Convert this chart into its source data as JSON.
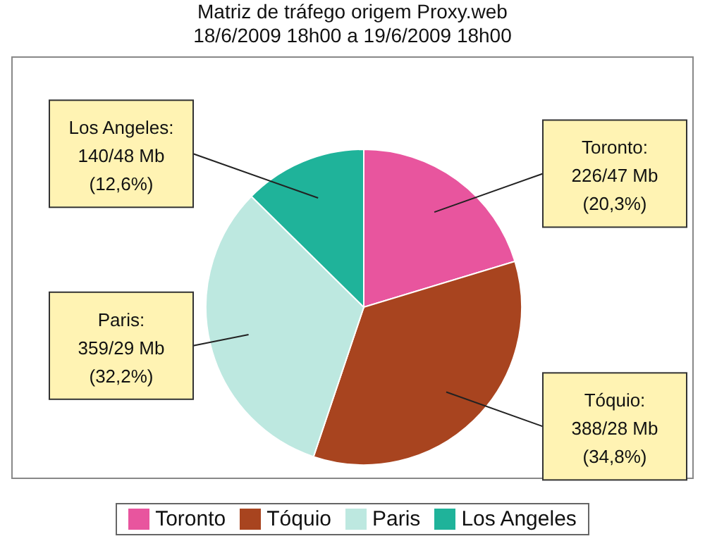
{
  "chart_data": {
    "type": "pie",
    "title": "Matriz de tráfego origem Proxy.web",
    "subtitle": "18/6/2009 18h00 a 19/6/2009 18h00",
    "categories": [
      "Toronto",
      "Tóquio",
      "Paris",
      "Los Angeles"
    ],
    "values": [
      20.3,
      34.8,
      32.2,
      12.6
    ],
    "colors": [
      "#e8559e",
      "#a8441f",
      "#bde8e0",
      "#1fb39a"
    ],
    "value_labels": [
      "Toronto:\n226/47 Mb\n(20,3%)",
      "Tóquio:\n388/28 Mb\n(34,8%)",
      "Paris:\n359/29 Mb\n(32,2%)",
      "Los Angeles:\n140/48 Mb\n(12,6%)"
    ],
    "legend": "bottom"
  }
}
